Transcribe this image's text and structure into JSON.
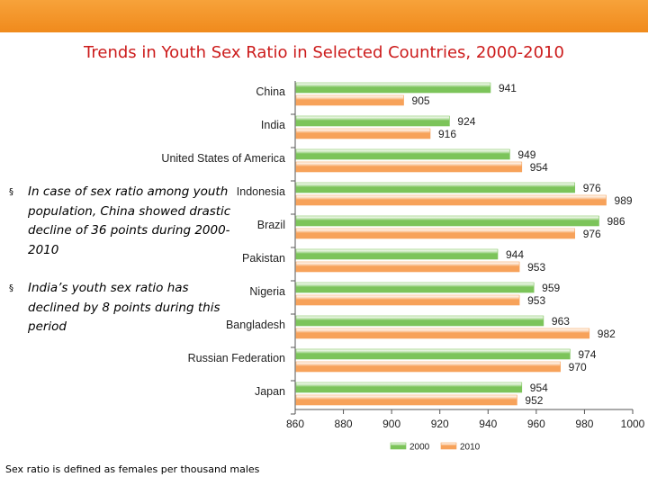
{
  "slide": {
    "title": "Trends in Youth Sex Ratio in Selected Countries, 2000-2010",
    "bullets": [
      {
        "marker": "§",
        "text": "In case of sex ratio among youth population, China showed drastic decline of 36 points during 2000-2010"
      },
      {
        "marker": "§",
        "text": "India’s youth sex ratio has declined by 8 points during this period"
      }
    ],
    "footnote": "Sex ratio is defined as females per thousand males"
  },
  "colors": {
    "header": "#f08a1c",
    "title": "#cc1b1b",
    "series_2000": "#7cc45a",
    "series_2010": "#f7a25a"
  },
  "chart_data": {
    "type": "bar",
    "orientation": "horizontal",
    "title": "",
    "xlabel": "",
    "ylabel": "",
    "xlim": [
      860,
      1000
    ],
    "xticks": [
      860,
      880,
      900,
      920,
      940,
      960,
      980,
      1000
    ],
    "categories": [
      "China",
      "India",
      "United States of America",
      "Indonesia",
      "Brazil",
      "Pakistan",
      "Nigeria",
      "Bangladesh",
      "Russian Federation",
      "Japan"
    ],
    "series": [
      {
        "name": "2000",
        "color": "#7cc45a",
        "values": [
          941,
          924,
          949,
          976,
          986,
          944,
          959,
          963,
          974,
          954
        ]
      },
      {
        "name": "2010",
        "color": "#f7a25a",
        "values": [
          905,
          916,
          954,
          989,
          976,
          953,
          953,
          982,
          970,
          952
        ]
      }
    ],
    "legend_position": "bottom"
  }
}
